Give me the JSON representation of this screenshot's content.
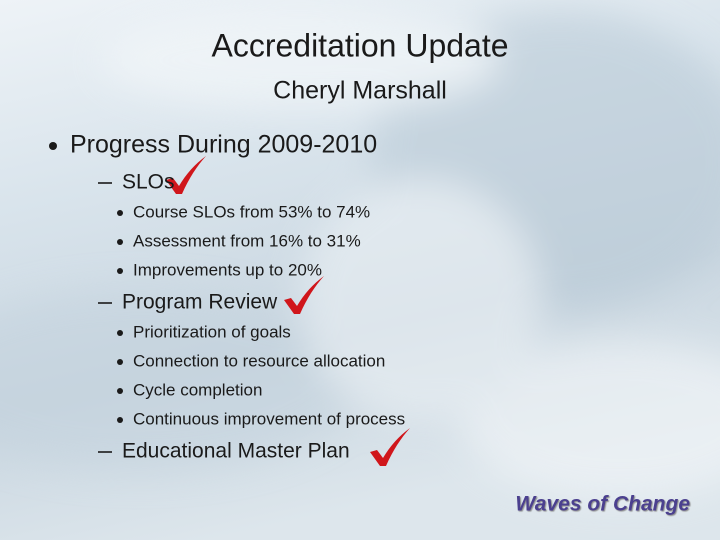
{
  "title": "Accreditation Update",
  "subtitle": "Cheryl Marshall",
  "bullets": [
    {
      "text": "Progress During 2009-2010",
      "items": [
        {
          "text": "SLOs",
          "items": [
            "Course SLOs from 53% to 74%",
            "Assessment from 16% to 31%",
            "Improvements up to 20%"
          ]
        },
        {
          "text": "Program Review",
          "items": [
            "Prioritization of goals",
            "Connection to resource allocation",
            "Cycle completion",
            "Continuous improvement of process"
          ]
        },
        {
          "text": "Educational Master Plan",
          "items": []
        }
      ]
    }
  ],
  "footer": "Waves of Change"
}
